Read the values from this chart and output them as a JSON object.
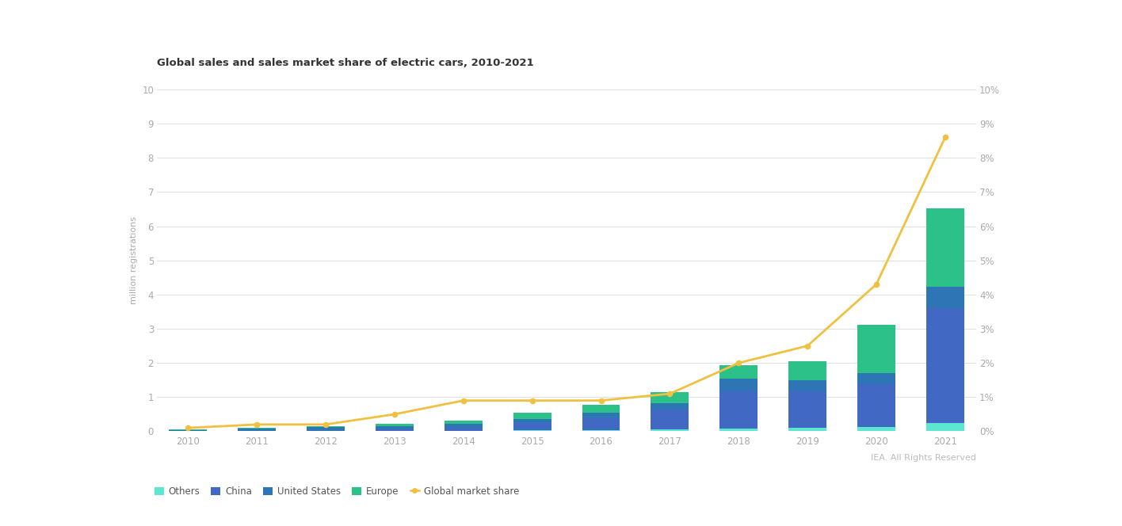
{
  "title": "Global sales and sales market share of electric cars, 2010-2021",
  "years": [
    2010,
    2011,
    2012,
    2013,
    2014,
    2015,
    2016,
    2017,
    2018,
    2019,
    2020,
    2021
  ],
  "others": [
    0.01,
    0.01,
    0.01,
    0.01,
    0.02,
    0.03,
    0.04,
    0.05,
    0.08,
    0.1,
    0.13,
    0.25
  ],
  "china": [
    0.01,
    0.01,
    0.01,
    0.05,
    0.08,
    0.21,
    0.35,
    0.58,
    1.1,
    1.06,
    1.25,
    3.35
  ],
  "usa": [
    0.02,
    0.07,
    0.1,
    0.1,
    0.12,
    0.11,
    0.16,
    0.2,
    0.36,
    0.33,
    0.33,
    0.63
  ],
  "europe": [
    0.01,
    0.02,
    0.03,
    0.06,
    0.1,
    0.2,
    0.22,
    0.31,
    0.4,
    0.56,
    1.4,
    2.3
  ],
  "market_share_pct": [
    0.1,
    0.2,
    0.2,
    0.5,
    0.9,
    0.9,
    0.9,
    1.1,
    2.0,
    2.5,
    4.3,
    8.6
  ],
  "color_others": "#5ce8d0",
  "color_china": "#4169c4",
  "color_usa": "#2e75b6",
  "color_europe": "#2dc18a",
  "color_line": "#f0c040",
  "ylabel_left": "million registrations",
  "ylim_left": [
    0,
    10
  ],
  "ylim_right": [
    0,
    10
  ],
  "yticks_left": [
    0,
    1,
    2,
    3,
    4,
    5,
    6,
    7,
    8,
    9,
    10
  ],
  "yticks_right_labels": [
    "0%",
    "1%",
    "2%",
    "3%",
    "4%",
    "5%",
    "6%",
    "7%",
    "8%",
    "9%",
    "10%"
  ],
  "legend_labels": [
    "Others",
    "China",
    "United States",
    "Europe",
    "Global market share"
  ],
  "attribution": "IEA. All Rights Reserved",
  "background_color": "#ffffff",
  "grid_color": "#e0e0e0",
  "tick_color": "#aaaaaa",
  "title_fontsize": 9.5,
  "bar_width": 0.55
}
